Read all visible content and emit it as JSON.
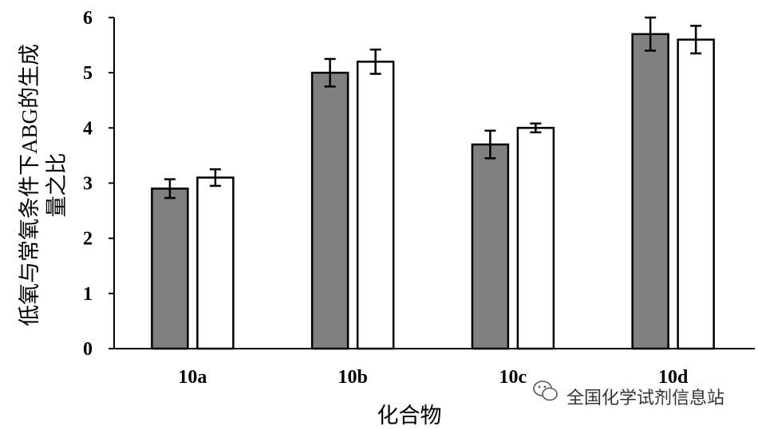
{
  "chart_data": {
    "type": "bar",
    "categories": [
      "10a",
      "10b",
      "10c",
      "10d"
    ],
    "series": [
      {
        "values": [
          2.9,
          5.0,
          3.7,
          5.7
        ],
        "errors": [
          0.17,
          0.25,
          0.25,
          0.3
        ],
        "color": "#808080"
      },
      {
        "values": [
          3.1,
          5.2,
          4.0,
          5.6
        ],
        "errors": [
          0.15,
          0.22,
          0.08,
          0.25
        ],
        "color": "#ffffff"
      }
    ],
    "title": "",
    "xlabel": "化合物",
    "ylabel_lines": [
      "低氧与常氧条件下ABG的生成",
      "量之比"
    ],
    "ylim": [
      0,
      6
    ],
    "yticks": [
      "0",
      "1",
      "2",
      "3",
      "4",
      "5",
      "6"
    ],
    "grid": false
  },
  "watermark": {
    "text": "全国化学试剂信息站",
    "icon": "wechat-icon"
  }
}
